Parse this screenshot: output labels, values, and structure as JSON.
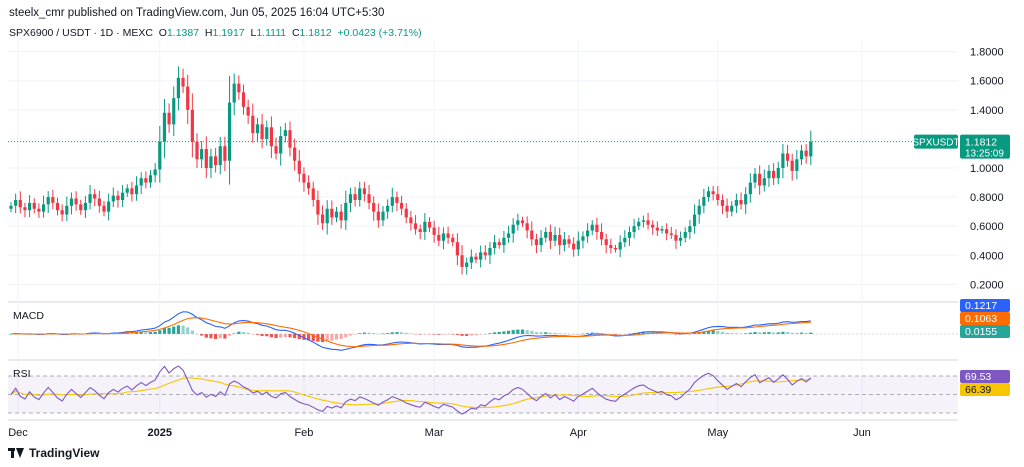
{
  "header": {
    "published": "steelx_cmr published on TradingView.com, Jun 05, 2025 16:04 UTC+5:30",
    "symbol": "SPX6900 / USDT · 1D · MEXC",
    "o_label": "O",
    "o": "1.1387",
    "h_label": "H",
    "h": "1.1917",
    "l_label": "L",
    "l": "1.1111",
    "c_label": "C",
    "c": "1.1812",
    "change": "+0.0423 (+3.71%)"
  },
  "colors": {
    "up": "#089981",
    "down": "#f23645",
    "macd": "#2962ff",
    "signal": "#ff6d00",
    "rsi": "#7e57c2",
    "rsi_ma": "#f7c600",
    "grid": "#f0f3fa"
  },
  "price_tag": {
    "symbol": "SPXUSDT",
    "value": "1.1812",
    "countdown": "13:25:09"
  },
  "macd": {
    "label": "MACD",
    "macd_value": "0.1217",
    "signal_value": "0.1063",
    "hist_value": "0.0155"
  },
  "rsi": {
    "label": "RSI",
    "rsi_value": "69.53",
    "ma_value": "66.39"
  },
  "footer": {
    "brand": "TradingView"
  },
  "chart_data": [
    {
      "type": "candlestick",
      "title": "SPX6900 / USDT · 1D · MEXC",
      "y_ticks": [
        "1.8000",
        "1.6000",
        "1.4000",
        "1.2000",
        "1.0000",
        "0.8000",
        "0.6000",
        "0.4000",
        "0.2000"
      ],
      "ylim": [
        0.12,
        1.88
      ],
      "x_ticks": [
        "Dec",
        "2025",
        "Feb",
        "Mar",
        "Apr",
        "May",
        "Jun"
      ],
      "x_tick_index": [
        0,
        32,
        63,
        91,
        122,
        152,
        183
      ],
      "last_price": 1.1812,
      "close": [
        0.74,
        0.78,
        0.73,
        0.71,
        0.76,
        0.72,
        0.7,
        0.75,
        0.8,
        0.76,
        0.71,
        0.68,
        0.74,
        0.79,
        0.75,
        0.71,
        0.76,
        0.82,
        0.79,
        0.74,
        0.7,
        0.77,
        0.81,
        0.78,
        0.83,
        0.86,
        0.82,
        0.88,
        0.93,
        0.9,
        0.95,
        0.99,
        1.18,
        1.38,
        1.3,
        1.48,
        1.62,
        1.56,
        1.4,
        1.18,
        1.06,
        1.13,
        1.0,
        1.08,
        1.02,
        1.15,
        1.05,
        1.45,
        1.58,
        1.52,
        1.42,
        1.36,
        1.24,
        1.3,
        1.2,
        1.28,
        1.15,
        1.1,
        1.22,
        1.26,
        1.14,
        1.05,
        0.96,
        0.9,
        0.86,
        0.78,
        0.68,
        0.62,
        0.72,
        0.66,
        0.7,
        0.64,
        0.76,
        0.82,
        0.78,
        0.86,
        0.82,
        0.76,
        0.7,
        0.64,
        0.7,
        0.74,
        0.8,
        0.76,
        0.72,
        0.66,
        0.62,
        0.58,
        0.56,
        0.63,
        0.59,
        0.54,
        0.5,
        0.55,
        0.52,
        0.49,
        0.4,
        0.32,
        0.35,
        0.39,
        0.37,
        0.42,
        0.4,
        0.45,
        0.49,
        0.47,
        0.52,
        0.55,
        0.61,
        0.64,
        0.62,
        0.57,
        0.51,
        0.47,
        0.52,
        0.56,
        0.5,
        0.54,
        0.47,
        0.51,
        0.48,
        0.44,
        0.5,
        0.53,
        0.57,
        0.61,
        0.56,
        0.51,
        0.47,
        0.45,
        0.44,
        0.49,
        0.52,
        0.56,
        0.6,
        0.63,
        0.64,
        0.61,
        0.59,
        0.57,
        0.58,
        0.55,
        0.54,
        0.5,
        0.52,
        0.56,
        0.6,
        0.68,
        0.74,
        0.8,
        0.84,
        0.82,
        0.78,
        0.74,
        0.7,
        0.74,
        0.78,
        0.75,
        0.82,
        0.9,
        0.96,
        0.88,
        0.93,
        0.98,
        0.93,
        1.0,
        1.1,
        1.05,
        0.98,
        1.06,
        1.12,
        1.08,
        1.18
      ],
      "rsi_levels": [
        70,
        50,
        30
      ]
    }
  ]
}
